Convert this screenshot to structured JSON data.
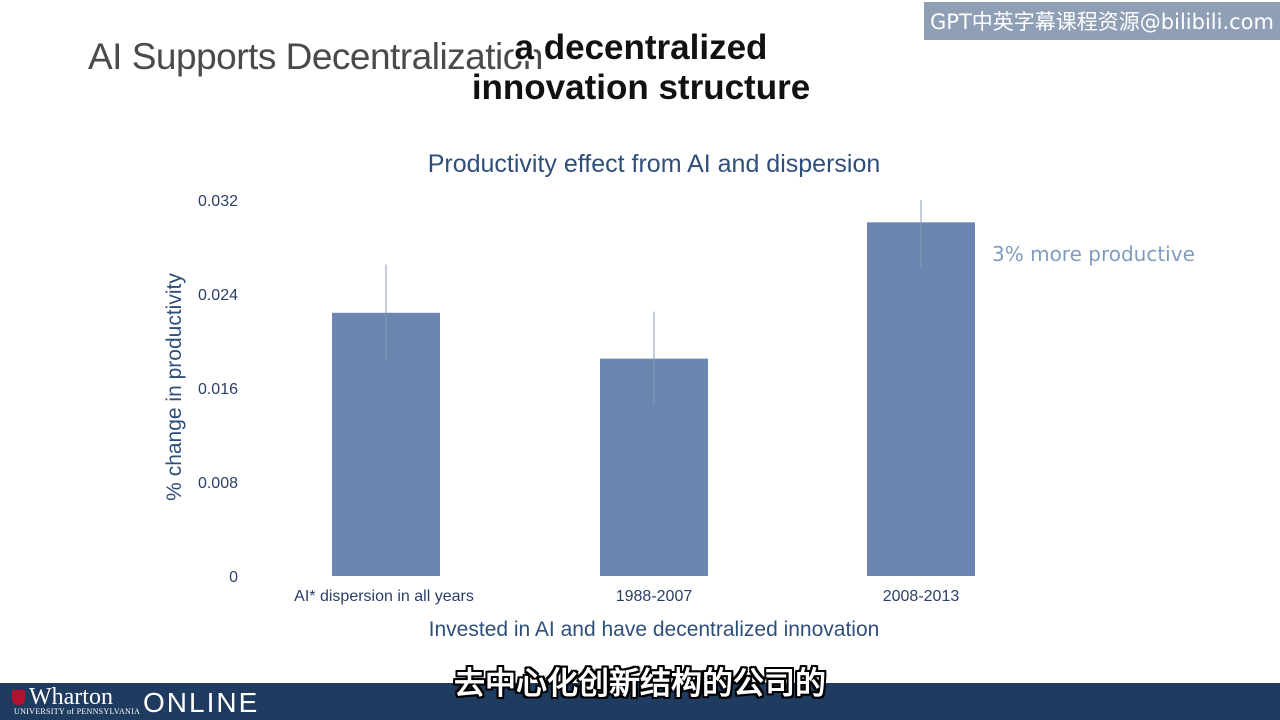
{
  "slide": {
    "title": "AI Supports Decentralization"
  },
  "watermark": "GPT中英字幕课程资源@bilibili.com",
  "subtitles": {
    "top_line1": "a decentralized",
    "top_line2": "innovation structure",
    "bottom": "去中心化创新结构的公司的"
  },
  "chart_data": {
    "type": "bar",
    "title": "Productivity effect from AI and dispersion",
    "xlabel": "Invested in AI and have decentralized innovation",
    "ylabel": "% change  in productivity",
    "categories": [
      "AI* dispersion in all years",
      "1988-2007",
      "2008-2013"
    ],
    "values": [
      0.0224,
      0.0185,
      0.0301
    ],
    "error_bars": [
      [
        0.0183,
        0.0265
      ],
      [
        0.0146,
        0.0225
      ],
      [
        0.0262,
        0.032
      ]
    ],
    "ylim": [
      0,
      0.032
    ],
    "yticks": [
      "0",
      "0.008",
      "0.016",
      "0.024",
      "0.032"
    ],
    "annotation": "3% more productive",
    "grid": false,
    "legend": "none",
    "colors": {
      "bar": "#6b86b0",
      "title": "#2f4f7a",
      "annotation": "#7f9cc0",
      "tick": "#2a3f66"
    }
  },
  "footer": {
    "logo": "Wharton",
    "logo_sub": "UNIVERSITY of PENNSYLVANIA",
    "online": "ONLINE",
    "background": "#1f3b60"
  }
}
